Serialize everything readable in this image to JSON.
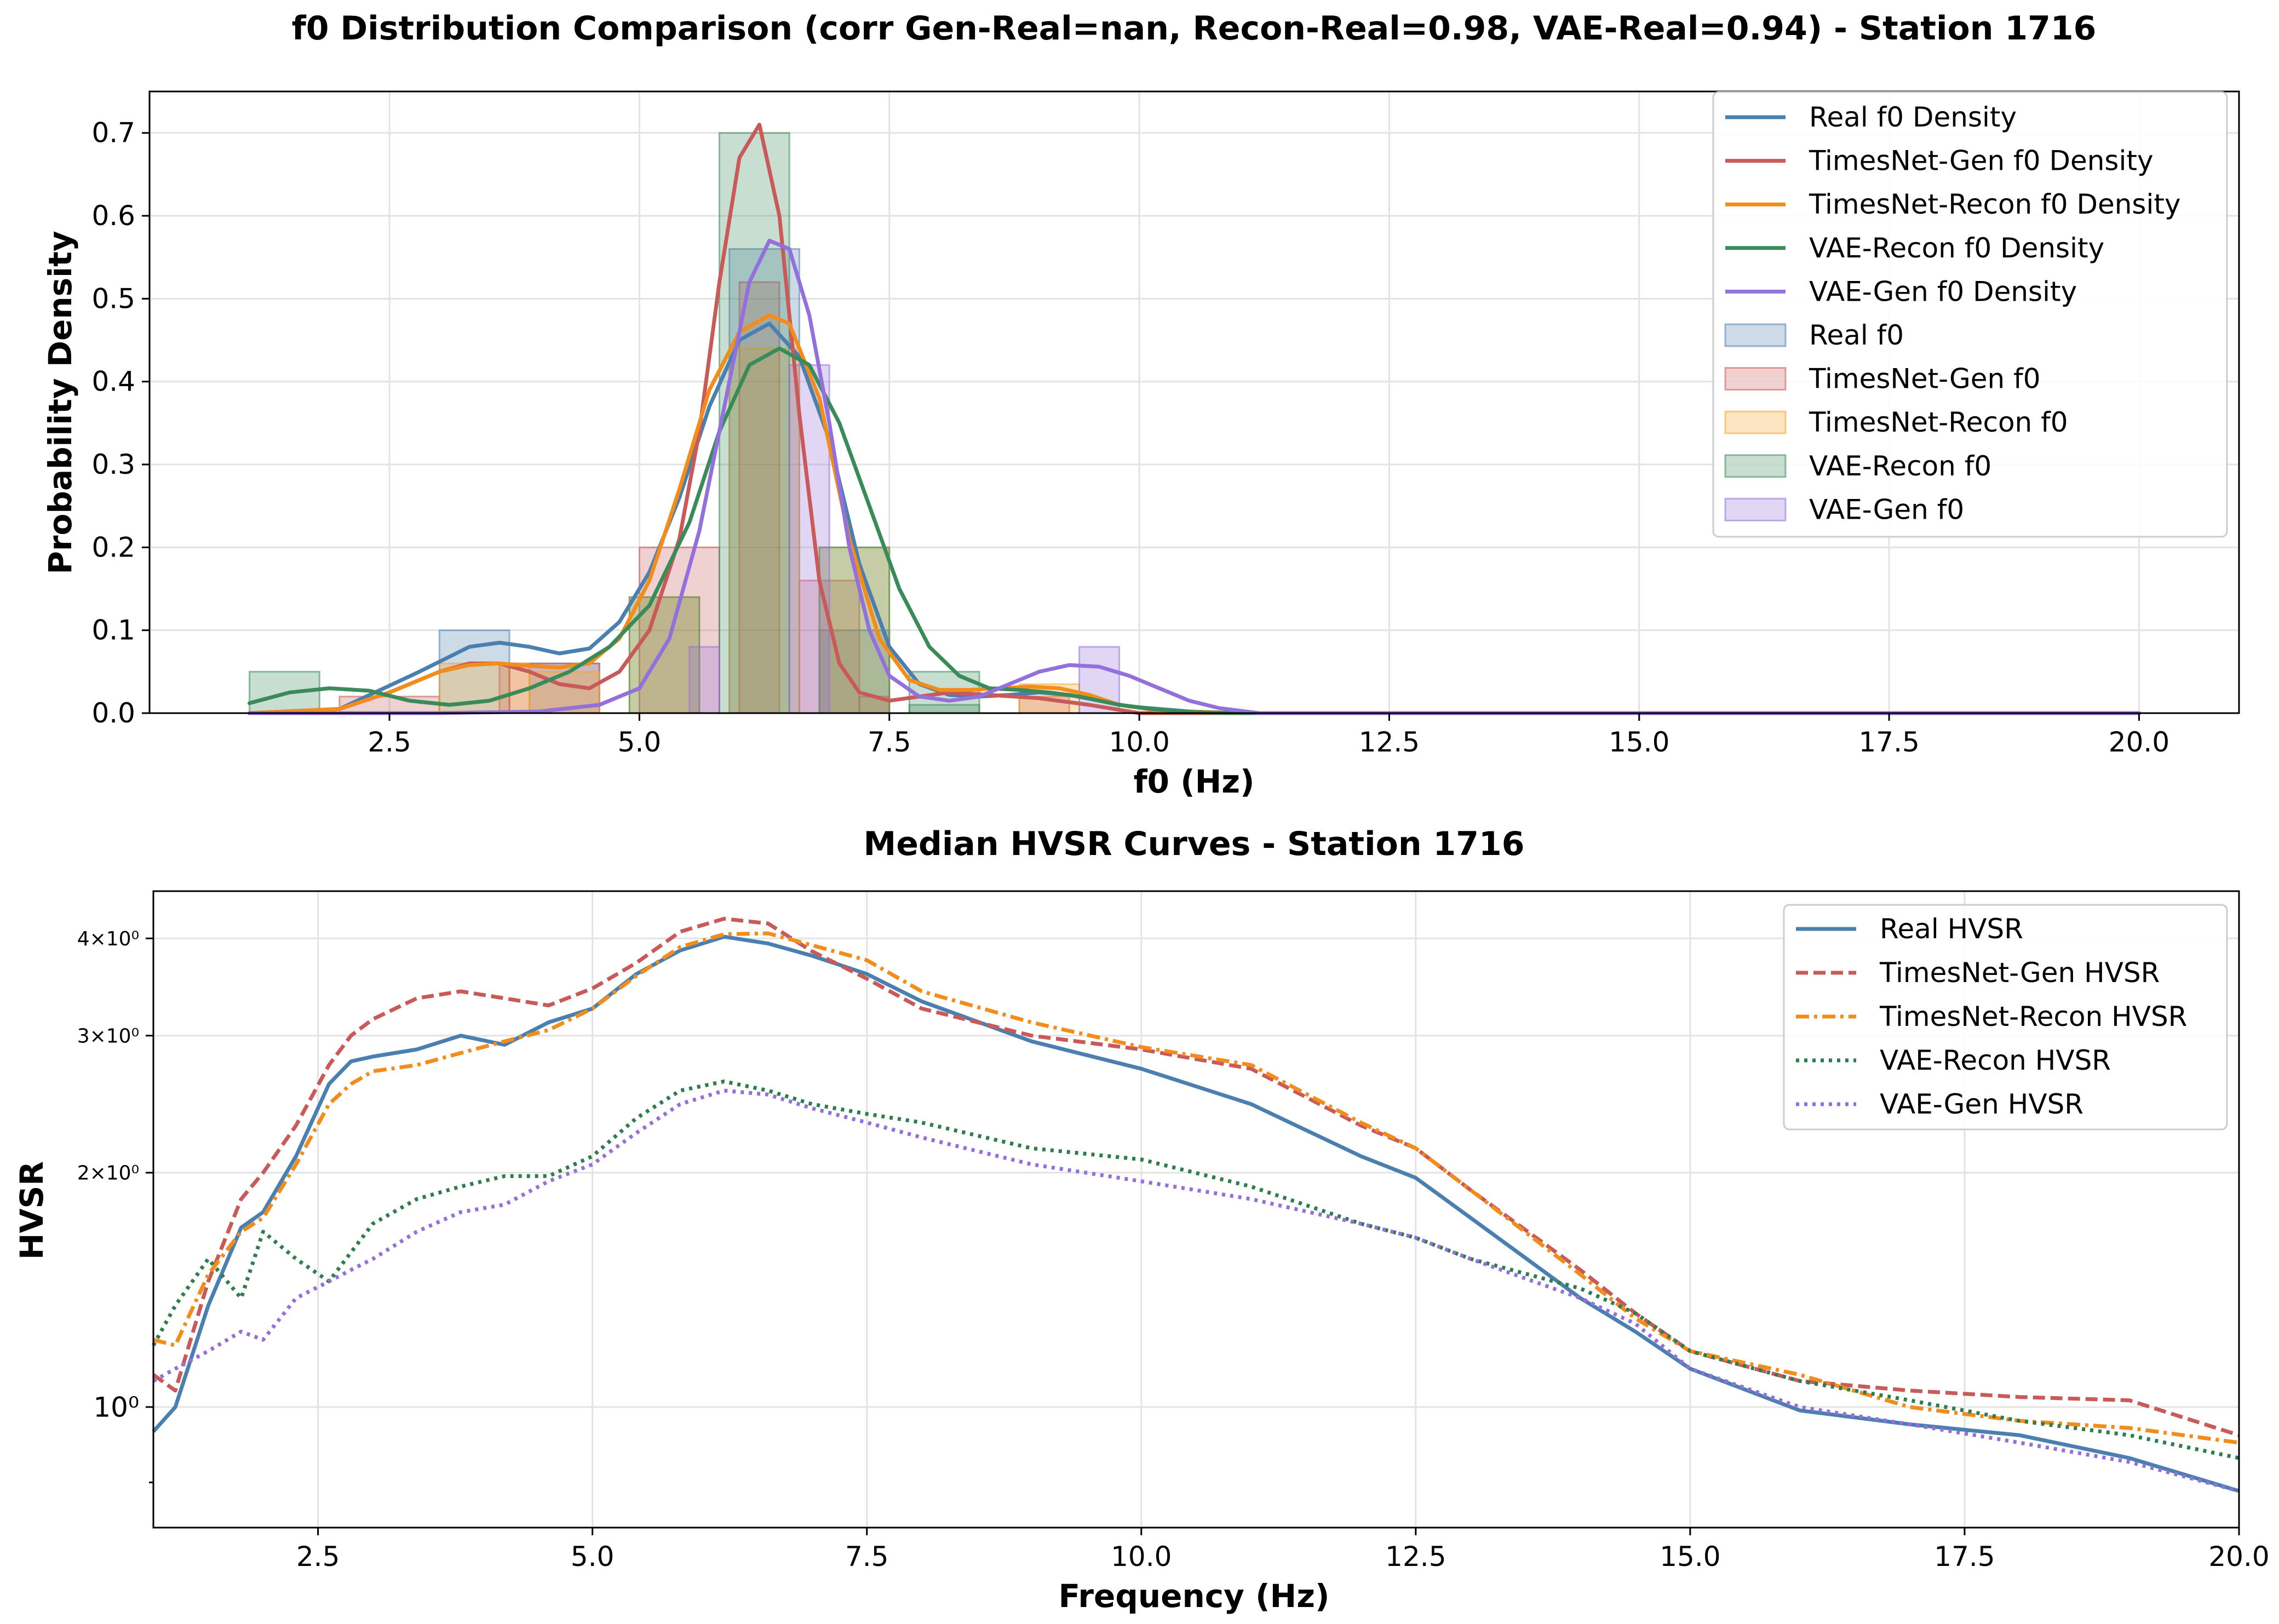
{
  "chart_data": [
    {
      "type": "histogram+density",
      "title": "f0 Distribution Comparison (corr Gen-Real=nan, Recon-Real=0.98, VAE-Real=0.94) - Station 1716",
      "xlabel": "f0 (Hz)",
      "ylabel": "Probability Density",
      "xlim": [
        0.1,
        21.0
      ],
      "ylim": [
        0,
        0.75
      ],
      "xticks": [
        "2.5",
        "5.0",
        "7.5",
        "10.0",
        "12.5",
        "15.0",
        "17.5",
        "20.0"
      ],
      "xtick_values": [
        2.5,
        5.0,
        7.5,
        10.0,
        12.5,
        15.0,
        17.5,
        20.0
      ],
      "yticks": [
        "0.0",
        "0.1",
        "0.2",
        "0.3",
        "0.4",
        "0.5",
        "0.6",
        "0.7"
      ],
      "ytick_values": [
        0.0,
        0.1,
        0.2,
        0.3,
        0.4,
        0.5,
        0.6,
        0.7
      ],
      "grid": true,
      "legend_position": "top-right",
      "legend": [
        "Real f0 Density",
        "TimesNet-Gen f0 Density",
        "TimesNet-Recon f0 Density",
        "VAE-Recon f0 Density",
        "VAE-Gen f0 Density",
        "Real f0",
        "TimesNet-Gen f0",
        "TimesNet-Recon f0",
        "VAE-Recon f0",
        "VAE-Gen f0"
      ],
      "density_series": [
        {
          "name": "Real f0 Density",
          "color": "#4a7fb0",
          "x": [
            1.1,
            2.0,
            2.8,
            3.3,
            3.6,
            3.9,
            4.2,
            4.5,
            4.8,
            5.1,
            5.4,
            5.7,
            6.0,
            6.3,
            6.6,
            6.9,
            7.2,
            7.5,
            7.8,
            8.1,
            8.4,
            8.7,
            9.0,
            9.3,
            9.6,
            9.9,
            10.5,
            11.0,
            12.0,
            20.0
          ],
          "y": [
            0.0,
            0.005,
            0.05,
            0.08,
            0.085,
            0.08,
            0.072,
            0.078,
            0.11,
            0.17,
            0.26,
            0.37,
            0.45,
            0.47,
            0.43,
            0.33,
            0.18,
            0.08,
            0.035,
            0.022,
            0.02,
            0.022,
            0.025,
            0.022,
            0.015,
            0.008,
            0.002,
            0.0,
            0.0,
            0.0
          ]
        },
        {
          "name": "TimesNet-Gen f0 Density",
          "color": "#c85a5a",
          "x": [
            1.1,
            2.0,
            2.5,
            3.0,
            3.3,
            3.6,
            3.9,
            4.2,
            4.5,
            4.8,
            5.1,
            5.4,
            5.6,
            5.8,
            6.0,
            6.2,
            6.4,
            6.6,
            6.8,
            7.0,
            7.2,
            7.5,
            7.8,
            8.1,
            8.5,
            9.0,
            9.5,
            10.0,
            11.0,
            20.0
          ],
          "y": [
            0.0,
            0.005,
            0.025,
            0.05,
            0.06,
            0.06,
            0.05,
            0.035,
            0.03,
            0.05,
            0.1,
            0.21,
            0.34,
            0.52,
            0.67,
            0.71,
            0.6,
            0.36,
            0.16,
            0.06,
            0.025,
            0.015,
            0.02,
            0.025,
            0.022,
            0.018,
            0.01,
            0.0,
            0.0,
            0.0
          ]
        },
        {
          "name": "TimesNet-Recon f0 Density",
          "color": "#f28c1a",
          "x": [
            1.1,
            2.0,
            2.5,
            3.0,
            3.3,
            3.6,
            3.9,
            4.2,
            4.5,
            4.8,
            5.1,
            5.4,
            5.7,
            6.0,
            6.3,
            6.5,
            6.8,
            7.1,
            7.4,
            7.7,
            8.0,
            8.3,
            8.6,
            8.9,
            9.2,
            9.5,
            9.8,
            10.2,
            11.0,
            20.0
          ],
          "y": [
            0.0,
            0.005,
            0.025,
            0.05,
            0.058,
            0.06,
            0.057,
            0.055,
            0.06,
            0.09,
            0.16,
            0.27,
            0.39,
            0.46,
            0.48,
            0.47,
            0.38,
            0.21,
            0.09,
            0.04,
            0.028,
            0.028,
            0.03,
            0.032,
            0.03,
            0.022,
            0.01,
            0.003,
            0.0,
            0.0
          ]
        },
        {
          "name": "VAE-Recon f0 Density",
          "color": "#3a8a5a",
          "x": [
            1.1,
            1.5,
            1.9,
            2.3,
            2.7,
            3.1,
            3.5,
            3.9,
            4.3,
            4.7,
            5.1,
            5.5,
            5.8,
            6.1,
            6.4,
            6.7,
            7.0,
            7.3,
            7.6,
            7.9,
            8.2,
            8.5,
            8.8,
            9.1,
            9.4,
            9.8,
            10.2,
            10.6,
            11.0,
            20.0
          ],
          "y": [
            0.012,
            0.025,
            0.03,
            0.027,
            0.015,
            0.01,
            0.015,
            0.03,
            0.05,
            0.08,
            0.13,
            0.23,
            0.34,
            0.42,
            0.44,
            0.42,
            0.35,
            0.25,
            0.15,
            0.08,
            0.045,
            0.03,
            0.028,
            0.025,
            0.02,
            0.01,
            0.004,
            0.001,
            0.0,
            0.0
          ]
        },
        {
          "name": "VAE-Gen f0 Density",
          "color": "#9370db",
          "x": [
            1.1,
            3.0,
            4.0,
            4.6,
            5.0,
            5.3,
            5.6,
            5.9,
            6.1,
            6.3,
            6.5,
            6.7,
            6.9,
            7.1,
            7.3,
            7.5,
            7.8,
            8.1,
            8.4,
            8.7,
            9.0,
            9.3,
            9.6,
            9.9,
            10.2,
            10.5,
            10.8,
            11.2,
            12.0,
            20.0
          ],
          "y": [
            0.0,
            0.0,
            0.002,
            0.01,
            0.03,
            0.09,
            0.22,
            0.4,
            0.52,
            0.57,
            0.56,
            0.48,
            0.35,
            0.2,
            0.1,
            0.045,
            0.02,
            0.015,
            0.02,
            0.035,
            0.05,
            0.058,
            0.056,
            0.045,
            0.03,
            0.015,
            0.006,
            0.0,
            0.0,
            0.0
          ]
        }
      ],
      "histogram_series": [
        {
          "name": "Real f0",
          "color": "#4a7fb0",
          "bins": [
            [
              3.0,
              3.7,
              0.1
            ],
            [
              3.9,
              4.6,
              0.06
            ],
            [
              5.9,
              6.6,
              0.56
            ],
            [
              6.8,
              7.5,
              0.1
            ]
          ]
        },
        {
          "name": "TimesNet-Gen f0",
          "color": "#c85a5a",
          "bins": [
            [
              2.0,
              3.0,
              0.02
            ],
            [
              3.6,
              3.7,
              0.06
            ],
            [
              3.7,
              4.6,
              0.06
            ],
            [
              5.0,
              5.8,
              0.2
            ],
            [
              6.0,
              6.4,
              0.52
            ],
            [
              6.6,
              7.2,
              0.16
            ],
            [
              7.2,
              7.5,
              0.02
            ],
            [
              8.8,
              9.3,
              0.02
            ]
          ]
        },
        {
          "name": "TimesNet-Recon f0",
          "color": "#f5a623",
          "bins": [
            [
              3.0,
              3.9,
              0.06
            ],
            [
              3.9,
              4.6,
              0.05
            ],
            [
              4.9,
              5.6,
              0.14
            ],
            [
              5.9,
              6.6,
              0.44
            ],
            [
              6.8,
              7.5,
              0.2
            ],
            [
              8.8,
              9.4,
              0.035
            ]
          ]
        },
        {
          "name": "VAE-Recon f0",
          "color": "#3a8a5a",
          "bins": [
            [
              1.1,
              1.8,
              0.05
            ],
            [
              4.9,
              5.6,
              0.14
            ],
            [
              5.8,
              6.5,
              0.7
            ],
            [
              6.8,
              7.5,
              0.2
            ],
            [
              7.7,
              8.4,
              0.05
            ],
            [
              7.7,
              8.4,
              0.01
            ]
          ]
        },
        {
          "name": "VAE-Gen f0",
          "color": "#9370db",
          "bins": [
            [
              5.5,
              5.8,
              0.08
            ],
            [
              6.5,
              6.9,
              0.42
            ],
            [
              9.4,
              9.8,
              0.08
            ]
          ]
        }
      ]
    },
    {
      "type": "line",
      "title": "Median HVSR Curves - Station 1716",
      "xlabel": "Frequency (Hz)",
      "ylabel": "HVSR",
      "xlim": [
        1.0,
        20.0
      ],
      "y_scale": "log",
      "ylim": [
        0.7,
        4.6
      ],
      "xticks": [
        "2.5",
        "5.0",
        "7.5",
        "10.0",
        "12.5",
        "15.0",
        "17.5",
        "20.0"
      ],
      "xtick_values": [
        2.5,
        5.0,
        7.5,
        10.0,
        12.5,
        15.0,
        17.5,
        20.0
      ],
      "yticks": [
        "10⁰",
        "2×10⁰",
        "3×10⁰",
        "4×10⁰"
      ],
      "ytick_values": [
        1,
        2,
        3,
        4
      ],
      "grid": true,
      "legend_position": "top-right",
      "legend": [
        "Real HVSR",
        "TimesNet-Gen HVSR",
        "TimesNet-Recon HVSR",
        "VAE-Recon HVSR",
        "VAE-Gen HVSR"
      ],
      "series": [
        {
          "name": "Real HVSR",
          "color": "#4a7fb0",
          "style": "solid",
          "x": [
            1.0,
            1.2,
            1.5,
            1.8,
            2.0,
            2.3,
            2.6,
            2.8,
            3.0,
            3.4,
            3.8,
            4.2,
            4.6,
            5.0,
            5.4,
            5.8,
            6.2,
            6.6,
            7.0,
            7.5,
            8.0,
            9.0,
            10.0,
            11.0,
            12.0,
            12.5,
            13.0,
            14.0,
            14.5,
            15.0,
            16.0,
            17.0,
            18.0,
            19.0,
            20.0
          ],
          "values": [
            0.93,
            1.0,
            1.35,
            1.7,
            1.78,
            2.1,
            2.6,
            2.78,
            2.82,
            2.88,
            3.0,
            2.92,
            3.12,
            3.25,
            3.6,
            3.86,
            4.02,
            3.94,
            3.8,
            3.6,
            3.32,
            2.95,
            2.72,
            2.45,
            2.1,
            1.97,
            1.75,
            1.38,
            1.25,
            1.12,
            0.99,
            0.95,
            0.92,
            0.86,
            0.78
          ]
        },
        {
          "name": "TimesNet-Gen HVSR",
          "color": "#c85a5a",
          "style": "dashed",
          "x": [
            1.0,
            1.2,
            1.5,
            1.8,
            2.0,
            2.3,
            2.6,
            2.8,
            3.0,
            3.4,
            3.8,
            4.2,
            4.6,
            5.0,
            5.4,
            5.8,
            6.2,
            6.6,
            7.0,
            7.5,
            8.0,
            9.0,
            10.0,
            11.0,
            12.0,
            12.5,
            13.0,
            14.0,
            14.5,
            15.0,
            16.0,
            17.0,
            18.0,
            19.0,
            20.0
          ],
          "values": [
            1.1,
            1.05,
            1.45,
            1.85,
            2.0,
            2.3,
            2.75,
            3.0,
            3.15,
            3.35,
            3.42,
            3.35,
            3.28,
            3.45,
            3.72,
            4.08,
            4.24,
            4.18,
            3.85,
            3.55,
            3.25,
            3.0,
            2.88,
            2.72,
            2.3,
            2.15,
            1.9,
            1.5,
            1.32,
            1.18,
            1.08,
            1.05,
            1.03,
            1.02,
            0.92
          ]
        },
        {
          "name": "TimesNet-Recon HVSR",
          "color": "#f28c1a",
          "style": "dashdot",
          "x": [
            1.0,
            1.2,
            1.5,
            1.8,
            2.0,
            2.3,
            2.6,
            2.8,
            3.0,
            3.4,
            3.8,
            4.2,
            4.6,
            5.0,
            5.4,
            5.8,
            6.2,
            6.6,
            7.0,
            7.5,
            8.0,
            9.0,
            10.0,
            11.0,
            12.0,
            12.5,
            13.0,
            14.0,
            14.5,
            15.0,
            16.0,
            17.0,
            18.0,
            19.0,
            20.0
          ],
          "values": [
            1.22,
            1.2,
            1.48,
            1.68,
            1.75,
            2.05,
            2.45,
            2.6,
            2.7,
            2.75,
            2.85,
            2.95,
            3.05,
            3.25,
            3.58,
            3.9,
            4.05,
            4.06,
            3.92,
            3.75,
            3.42,
            3.12,
            2.9,
            2.75,
            2.32,
            2.15,
            1.9,
            1.48,
            1.3,
            1.18,
            1.1,
            1.0,
            0.96,
            0.94,
            0.9
          ]
        },
        {
          "name": "VAE-Recon HVSR",
          "color": "#2e7d4f",
          "style": "dotted",
          "x": [
            1.0,
            1.2,
            1.5,
            1.8,
            2.0,
            2.3,
            2.6,
            2.8,
            3.0,
            3.4,
            3.8,
            4.2,
            4.6,
            5.0,
            5.4,
            5.8,
            6.2,
            6.6,
            7.0,
            7.5,
            8.0,
            9.0,
            10.0,
            11.0,
            12.0,
            12.5,
            13.0,
            14.0,
            14.5,
            15.0,
            16.0,
            17.0,
            18.0,
            19.0,
            20.0
          ],
          "values": [
            1.2,
            1.35,
            1.55,
            1.38,
            1.68,
            1.55,
            1.45,
            1.58,
            1.72,
            1.85,
            1.92,
            1.98,
            1.98,
            2.1,
            2.35,
            2.55,
            2.62,
            2.55,
            2.45,
            2.38,
            2.32,
            2.15,
            2.08,
            1.92,
            1.72,
            1.65,
            1.55,
            1.42,
            1.32,
            1.18,
            1.08,
            1.02,
            0.96,
            0.92,
            0.86
          ]
        },
        {
          "name": "VAE-Gen HVSR",
          "color": "#9370db",
          "style": "dotted",
          "x": [
            1.0,
            1.2,
            1.5,
            1.8,
            2.0,
            2.3,
            2.6,
            2.8,
            3.0,
            3.4,
            3.8,
            4.2,
            4.6,
            5.0,
            5.4,
            5.8,
            6.2,
            6.6,
            7.0,
            7.5,
            8.0,
            9.0,
            10.0,
            11.0,
            12.0,
            12.5,
            13.0,
            14.0,
            14.5,
            15.0,
            16.0,
            17.0,
            18.0,
            19.0,
            20.0
          ],
          "values": [
            1.08,
            1.12,
            1.18,
            1.25,
            1.22,
            1.38,
            1.45,
            1.5,
            1.55,
            1.68,
            1.78,
            1.82,
            1.95,
            2.05,
            2.25,
            2.45,
            2.55,
            2.52,
            2.42,
            2.32,
            2.22,
            2.05,
            1.95,
            1.85,
            1.72,
            1.65,
            1.55,
            1.38,
            1.28,
            1.12,
            1.0,
            0.95,
            0.9,
            0.85,
            0.78
          ]
        }
      ]
    }
  ]
}
